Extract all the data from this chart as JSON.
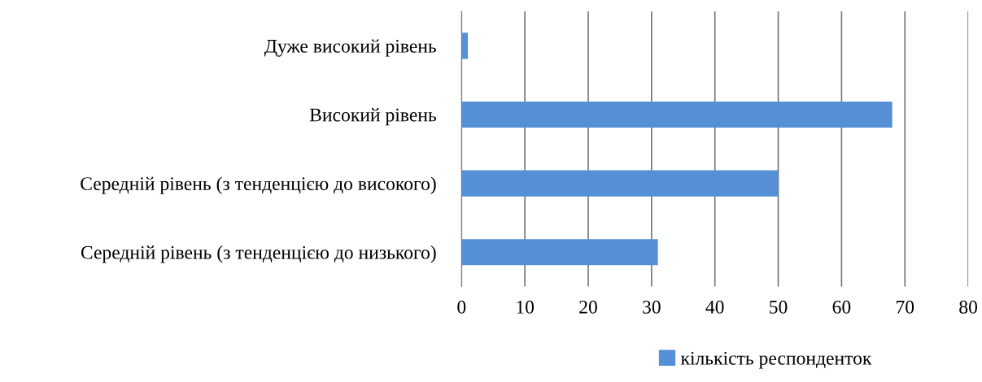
{
  "chart_data": {
    "type": "bar",
    "orientation": "horizontal",
    "categories": [
      "Дуже високий рівень",
      "Високий рівень",
      "Середній рівень (з тенденцією до високого)",
      "Середній рівень (з тенденцією до низького)"
    ],
    "series": [
      {
        "name": "кількість респонденток",
        "color": "#5590d6",
        "values": [
          1,
          68,
          50,
          31
        ]
      }
    ],
    "xlim": [
      0,
      80
    ],
    "xticks": [
      0,
      10,
      20,
      30,
      40,
      50,
      60,
      70,
      80
    ],
    "grid": "x",
    "legend": "bottom"
  }
}
